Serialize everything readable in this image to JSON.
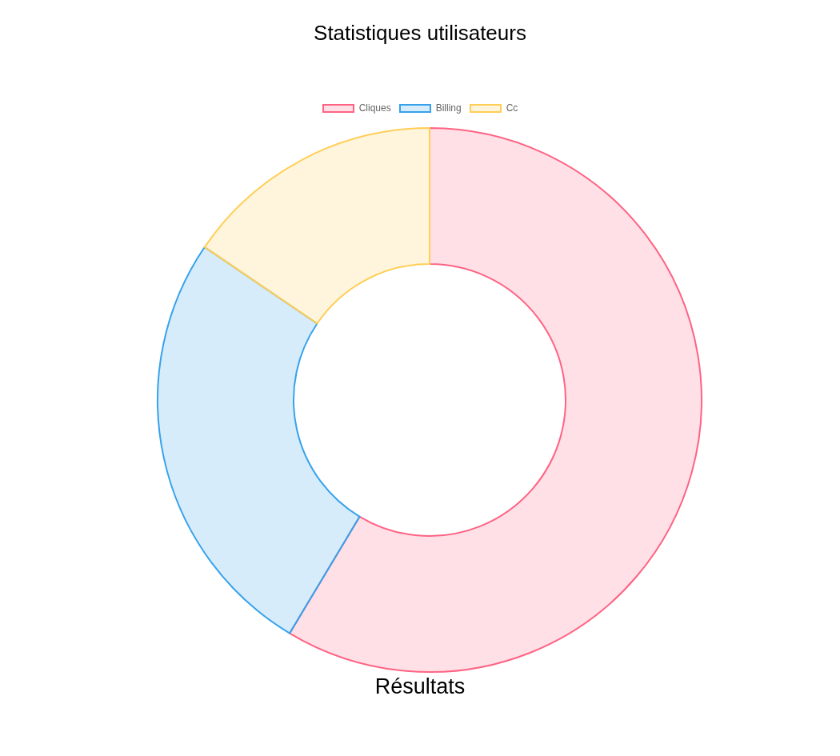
{
  "chart_data": {
    "type": "donut",
    "title": "Statistiques utilisateurs",
    "xlabel": "Résultats",
    "categories": [
      "Cliques",
      "Billing",
      "Cc"
    ],
    "values": [
      58.6,
      25.9,
      15.5
    ],
    "colors": [
      "#ff6384",
      "#36a2eb",
      "#ffce56"
    ],
    "legend": "top"
  }
}
